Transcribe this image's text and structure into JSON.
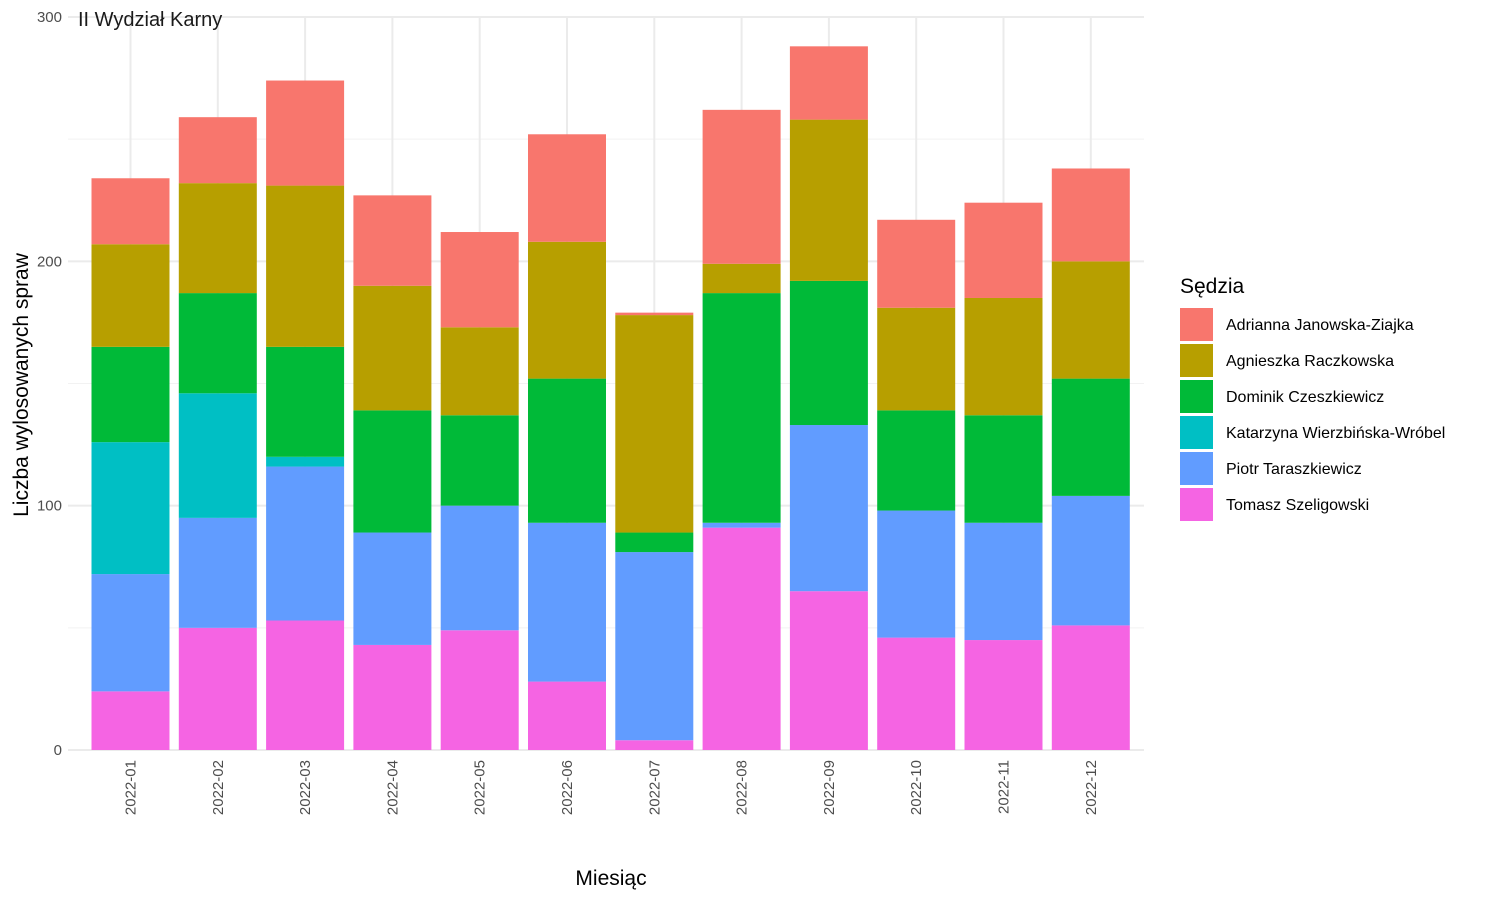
{
  "chart_data": {
    "type": "bar",
    "stacked": true,
    "title": "II Wydział Karny",
    "xlabel": "Miesiąc",
    "ylabel": "Liczba wylosowanych spraw",
    "ylim": [
      0,
      300
    ],
    "yticks": [
      0,
      100,
      200,
      300
    ],
    "grid": true,
    "legend_position": "right",
    "legend_title": "Sędzia",
    "categories": [
      "2022-01",
      "2022-02",
      "2022-03",
      "2022-04",
      "2022-05",
      "2022-06",
      "2022-07",
      "2022-08",
      "2022-09",
      "2022-10",
      "2022-11",
      "2022-12"
    ],
    "series": [
      {
        "name": "Adrianna Janowska-Ziajka",
        "color": "#F8766D",
        "values": [
          27,
          27,
          43,
          37,
          39,
          44,
          1,
          63,
          30,
          36,
          39,
          38
        ]
      },
      {
        "name": "Agnieszka Raczkowska",
        "color": "#B79F00",
        "values": [
          42,
          45,
          66,
          51,
          36,
          56,
          89,
          12,
          66,
          42,
          48,
          48
        ]
      },
      {
        "name": "Dominik Czeszkiewicz",
        "color": "#00BA38",
        "values": [
          39,
          41,
          45,
          50,
          37,
          59,
          8,
          94,
          59,
          41,
          44,
          48
        ]
      },
      {
        "name": "Katarzyna Wierzbińska-Wróbel",
        "color": "#00BFC4",
        "values": [
          54,
          51,
          4,
          0,
          0,
          0,
          0,
          0,
          0,
          0,
          0,
          0
        ]
      },
      {
        "name": "Piotr Taraszkiewicz",
        "color": "#619CFF",
        "values": [
          48,
          45,
          63,
          46,
          51,
          65,
          77,
          2,
          68,
          52,
          48,
          53
        ]
      },
      {
        "name": "Tomasz Szeligowski",
        "color": "#F564E3",
        "values": [
          24,
          50,
          53,
          43,
          49,
          28,
          4,
          91,
          65,
          46,
          45,
          51
        ]
      }
    ]
  }
}
